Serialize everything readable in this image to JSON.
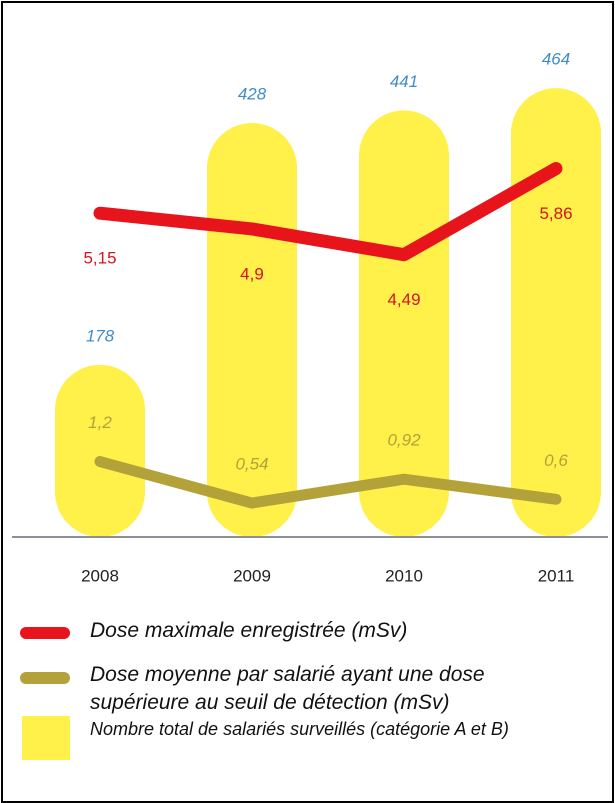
{
  "chart_data": {
    "type": "bar_line",
    "categories": [
      "2008",
      "2009",
      "2010",
      "2011"
    ],
    "ylim": [
      0,
      520
    ],
    "y2lim": [
      0,
      8
    ],
    "series": [
      {
        "name": "Nombre total de salariés surveillés (catégorie A et B)",
        "type": "bar",
        "color": "#fff04a",
        "values": [
          178,
          428,
          441,
          464
        ]
      },
      {
        "name": "Dose maximale enregistrée (mSv)",
        "type": "line",
        "axis": "y2",
        "color": "#e8141c",
        "values": [
          5.15,
          4.9,
          4.49,
          5.86
        ],
        "value_labels": [
          "5,15",
          "4,9",
          "4,49",
          "5,86"
        ]
      },
      {
        "name": "Dose moyenne par salarié ayant une dose supérieure au seuil de détection (mSv)",
        "type": "line",
        "axis": "y2",
        "color": "#b3a23a",
        "values": [
          1.2,
          0.54,
          0.92,
          0.6
        ],
        "value_labels": [
          "1,2",
          "0,54",
          "0,92",
          "0,6"
        ]
      }
    ]
  }
}
